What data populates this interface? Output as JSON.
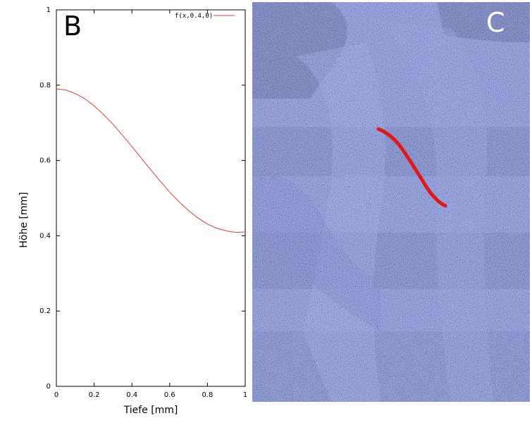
{
  "panels": {
    "left_letter": "B",
    "right_letter": "C"
  },
  "colors": {
    "curve": "#ee3b3b",
    "micrograph_dark": "#1a2038",
    "micrograph_light": "#c9d3ee",
    "overlay_curve": "#e01818"
  },
  "chart_data": {
    "type": "line",
    "xlabel": "Tiefe [mm]",
    "ylabel": "Höhe [mm]",
    "xlim": [
      0,
      1
    ],
    "ylim": [
      0,
      1
    ],
    "x_ticks": [
      "0",
      "0.2",
      "0.4",
      "0.6",
      "0.8",
      "1"
    ],
    "y_ticks": [
      "0",
      "0.2",
      "0.4",
      "0.6",
      "0.8",
      "1"
    ],
    "grid": false,
    "legend_position": "top-right",
    "series": [
      {
        "name": "f(x,0.4,0)",
        "x": [
          0,
          0.05,
          0.1,
          0.15,
          0.2,
          0.25,
          0.3,
          0.35,
          0.4,
          0.45,
          0.5,
          0.55,
          0.6,
          0.65,
          0.7,
          0.75,
          0.8,
          0.85,
          0.9,
          0.95,
          1.0
        ],
        "y": [
          0.79,
          0.787,
          0.778,
          0.764,
          0.745,
          0.722,
          0.696,
          0.667,
          0.637,
          0.606,
          0.575,
          0.545,
          0.516,
          0.49,
          0.467,
          0.447,
          0.431,
          0.42,
          0.413,
          0.409,
          0.41
        ]
      }
    ]
  },
  "micrograph": {
    "description_icon": "photo-micrograph"
  }
}
